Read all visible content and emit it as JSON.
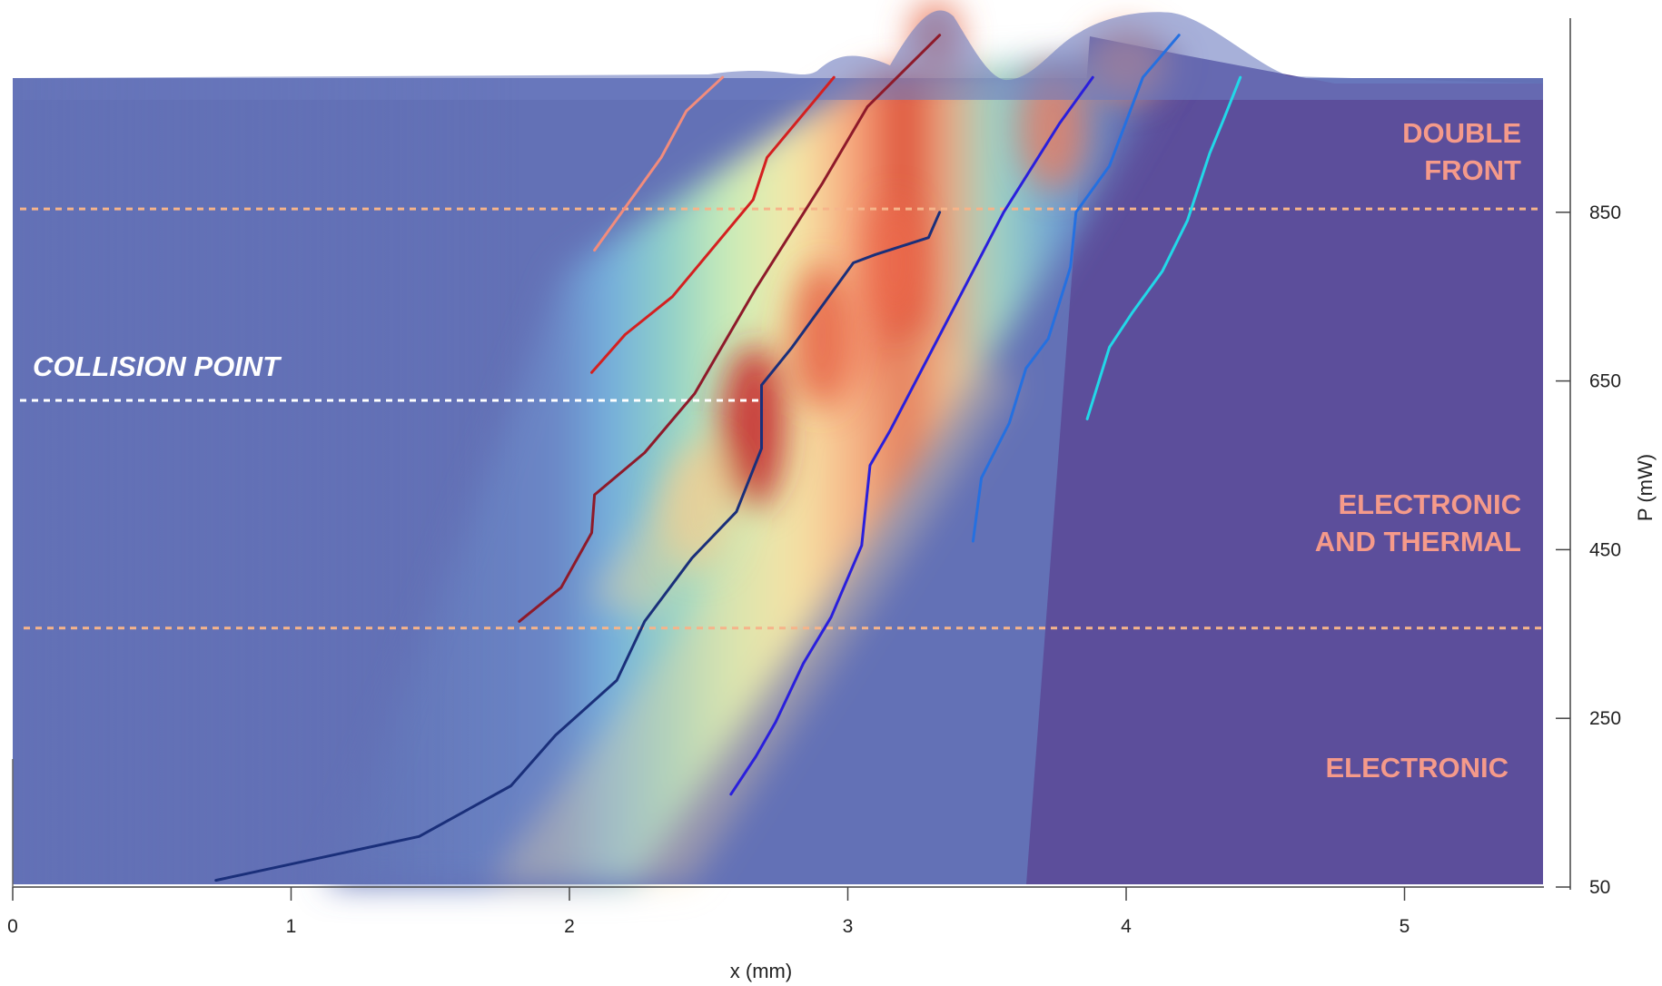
{
  "chart_data": {
    "type": "line",
    "title": "",
    "xlabel": "x (mm)",
    "ylabel": "P (mW)",
    "xlim": [
      0,
      5.5
    ],
    "ylim": [
      50,
      1010
    ],
    "x_ticks": [
      0,
      1,
      2,
      3,
      4,
      5
    ],
    "x_tick_labels": [
      "0",
      "1",
      "2",
      "3",
      "4",
      "5"
    ],
    "y_ticks": [
      50,
      250,
      450,
      650,
      850
    ],
    "y_tick_labels": [
      "50",
      "250",
      "450",
      "650",
      "850"
    ],
    "y_axis_side": "right",
    "grid": false,
    "legend": "none",
    "annotations": {
      "region_double_front": [
        "DOUBLE",
        "FRONT"
      ],
      "region_electronic_thermal": [
        "ELECTRONIC",
        "AND THERMAL"
      ],
      "region_electronic": [
        "ELECTRONIC"
      ],
      "collision_point": "COLLISION POINT"
    },
    "reference_lines": [
      {
        "y": 854,
        "style": "dashed",
        "color": "#f6b48a"
      },
      {
        "y": 627,
        "style": "dashed",
        "color": "#ffffff"
      },
      {
        "y": 357,
        "style": "dashed",
        "color": "#f6b48a"
      }
    ],
    "series": [
      {
        "color": "#f28c7c",
        "points": [
          [
            2.09,
            805
          ],
          [
            2.33,
            915
          ],
          [
            2.42,
            970
          ],
          [
            2.55,
            1010
          ]
        ]
      },
      {
        "color": "#d42020",
        "points": [
          [
            2.08,
            660
          ],
          [
            2.2,
            705
          ],
          [
            2.37,
            750
          ],
          [
            2.66,
            865
          ],
          [
            2.71,
            915
          ],
          [
            2.95,
            1010
          ]
        ]
      },
      {
        "color": "#8e1a2a",
        "points": [
          [
            1.82,
            365
          ],
          [
            1.97,
            405
          ],
          [
            2.08,
            470
          ],
          [
            2.09,
            515
          ],
          [
            2.27,
            565
          ],
          [
            2.45,
            635
          ],
          [
            2.67,
            760
          ],
          [
            2.91,
            885
          ],
          [
            3.07,
            975
          ],
          [
            3.33,
            1060
          ]
        ]
      },
      {
        "color": "#1a2f7a",
        "points": [
          [
            0.73,
            58
          ],
          [
            1.46,
            110
          ],
          [
            1.79,
            170
          ],
          [
            1.95,
            230
          ],
          [
            2.17,
            295
          ],
          [
            2.27,
            365
          ],
          [
            2.44,
            440
          ],
          [
            2.6,
            495
          ],
          [
            2.69,
            570
          ],
          [
            2.69,
            645
          ],
          [
            2.8,
            690
          ],
          [
            3.02,
            790
          ],
          [
            3.1,
            800
          ],
          [
            3.29,
            820
          ],
          [
            3.33,
            850
          ]
        ]
      },
      {
        "color": "#2a1fdc",
        "points": [
          [
            2.58,
            160
          ],
          [
            2.67,
            205
          ],
          [
            2.74,
            245
          ],
          [
            2.84,
            315
          ],
          [
            2.94,
            370
          ],
          [
            3.05,
            455
          ],
          [
            3.08,
            550
          ],
          [
            3.15,
            590
          ],
          [
            3.56,
            850
          ],
          [
            3.76,
            955
          ],
          [
            3.88,
            1010
          ]
        ]
      },
      {
        "color": "#2570e0",
        "points": [
          [
            3.45,
            460
          ],
          [
            3.48,
            535
          ],
          [
            3.58,
            600
          ],
          [
            3.64,
            665
          ],
          [
            3.72,
            700
          ],
          [
            3.8,
            785
          ],
          [
            3.82,
            850
          ],
          [
            3.94,
            905
          ],
          [
            4.06,
            1010
          ],
          [
            4.19,
            1060
          ]
        ]
      },
      {
        "color": "#22d8e8",
        "points": [
          [
            3.86,
            605
          ],
          [
            3.94,
            690
          ],
          [
            4.02,
            730
          ],
          [
            4.13,
            780
          ],
          [
            4.22,
            840
          ],
          [
            4.3,
            920
          ],
          [
            4.35,
            960
          ],
          [
            4.41,
            1010
          ]
        ]
      }
    ]
  }
}
